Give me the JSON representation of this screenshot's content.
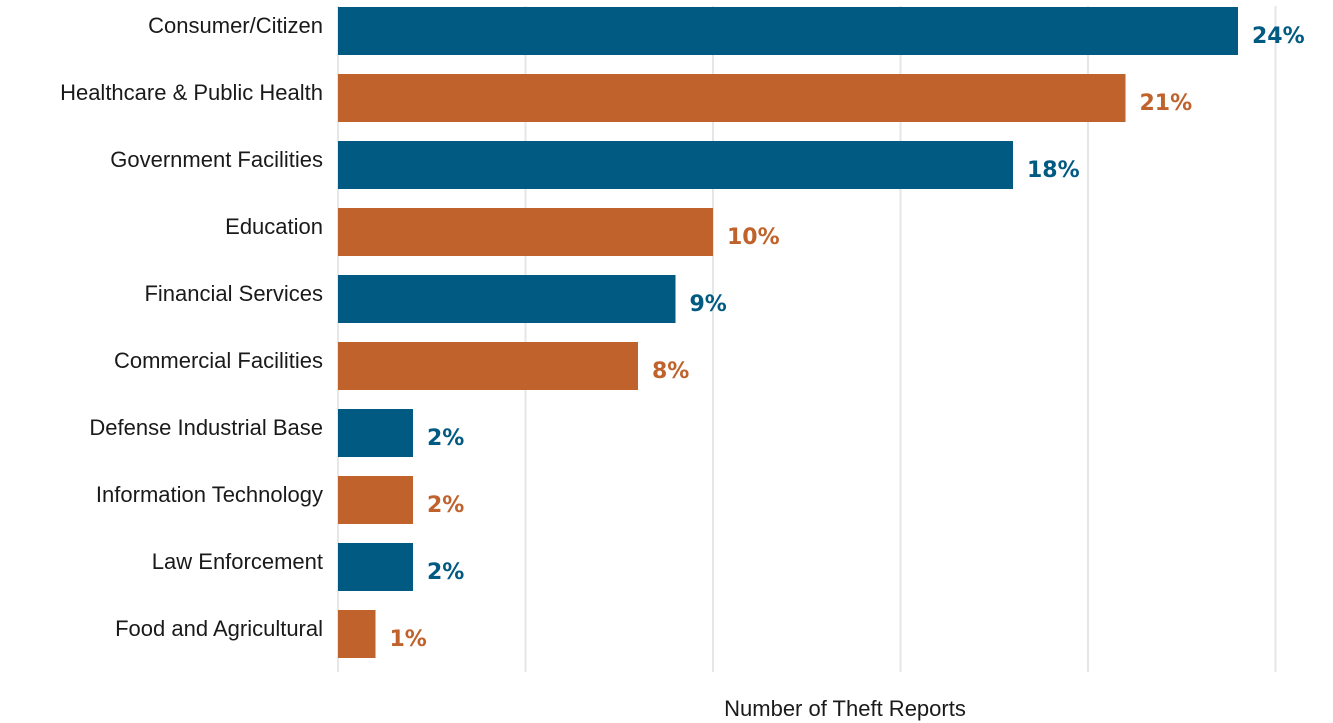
{
  "chart_data": {
    "type": "bar",
    "orientation": "horizontal",
    "title": "",
    "xlabel": "Number of Theft Reports",
    "ylabel": "",
    "categories": [
      "Consumer/Citizen",
      "Healthcare & Public Health",
      "Government Facilities",
      "Education",
      "Financial Services",
      "Commercial Facilities",
      "Defense Industrial Base",
      "Information Technology",
      "Law Enforcement",
      "Food and Agricultural"
    ],
    "values": [
      24,
      21,
      18,
      10,
      9,
      8,
      2,
      2,
      2,
      1
    ],
    "value_labels": [
      "24%",
      "21%",
      "18%",
      "10%",
      "9%",
      "8%",
      "2%",
      "2%",
      "2%",
      "1%"
    ],
    "xlim": [
      0,
      25
    ],
    "grid": "vertical",
    "colors": [
      "#005a82",
      "#bf622b"
    ]
  }
}
